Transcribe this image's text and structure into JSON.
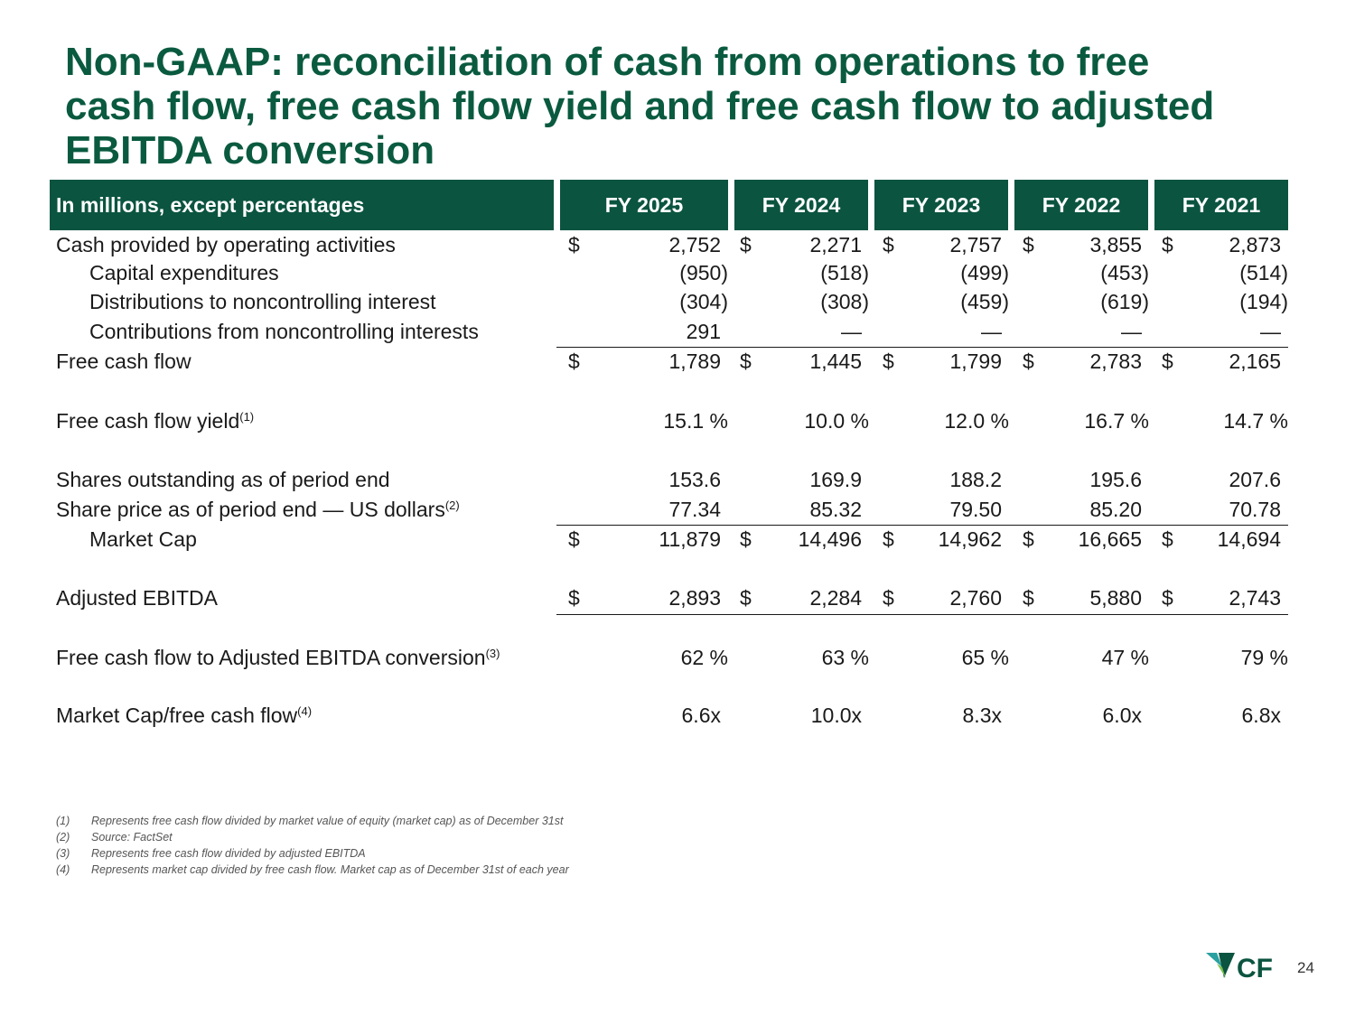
{
  "title_lines": [
    "Non-GAAP: reconciliation of cash from operations to free",
    "cash flow, free cash flow yield and free cash flow to adjusted",
    "EBITDA conversion"
  ],
  "table": {
    "header_label": "In millions, except percentages",
    "columns": [
      "FY 2025",
      "FY 2024",
      "FY 2023",
      "FY 2022",
      "FY 2021"
    ],
    "rows": [
      {
        "label": "Cash provided by operating activities",
        "indent": false,
        "dollar": true,
        "values": [
          "2,752",
          "2,271",
          "2,757",
          "3,855",
          "2,873"
        ]
      },
      {
        "label": "Capital expenditures",
        "indent": true,
        "dollar": false,
        "values": [
          "(950)",
          "(518)",
          "(499)",
          "(453)",
          "(514)"
        ]
      },
      {
        "label": "Distributions to noncontrolling interest",
        "indent": true,
        "dollar": false,
        "values": [
          "(304)",
          "(308)",
          "(459)",
          "(619)",
          "(194)"
        ]
      },
      {
        "label": "Contributions from noncontrolling interests",
        "indent": true,
        "dollar": false,
        "values": [
          "291",
          "—",
          "—",
          "—",
          "—"
        ]
      },
      {
        "label": "Free cash flow",
        "indent": false,
        "dollar": true,
        "values": [
          "1,789",
          "1,445",
          "1,799",
          "2,783",
          "2,165"
        ]
      },
      {
        "label": "Free cash flow yield",
        "sup": "(1)",
        "indent": false,
        "dollar": false,
        "values": [
          "15.1 %",
          "10.0 %",
          "12.0 %",
          "16.7 %",
          "14.7 %"
        ]
      },
      {
        "label": "Shares outstanding as of period end",
        "indent": false,
        "dollar": false,
        "values": [
          "153.6",
          "169.9",
          "188.2",
          "195.6",
          "207.6"
        ]
      },
      {
        "label": "Share price as of period end — US dollars",
        "sup": "(2)",
        "indent": false,
        "dollar": false,
        "values": [
          "77.34",
          "85.32",
          "79.50",
          "85.20",
          "70.78"
        ]
      },
      {
        "label": "Market Cap",
        "indent": true,
        "dollar": true,
        "values": [
          "11,879",
          "14,496",
          "14,962",
          "16,665",
          "14,694"
        ]
      },
      {
        "label": "Adjusted EBITDA",
        "indent": false,
        "dollar": true,
        "values": [
          "2,893",
          "2,284",
          "2,760",
          "5,880",
          "2,743"
        ]
      },
      {
        "label": "Free cash flow to Adjusted EBITDA conversion",
        "sup": "(3)",
        "indent": false,
        "dollar": false,
        "values": [
          "62 %",
          "63 %",
          "65 %",
          "47 %",
          "79 %"
        ]
      },
      {
        "label": "Market Cap/free cash flow",
        "sup": "(4)",
        "indent": false,
        "dollar": false,
        "values": [
          "6.6x",
          "10.0x",
          "8.3x",
          "6.0x",
          "6.8x"
        ]
      }
    ]
  },
  "currency_symbol": "$",
  "footnotes": [
    {
      "num": "(1)",
      "text": "Represents free cash flow divided by market value of equity (market cap) as of December 31st"
    },
    {
      "num": "(2)",
      "text": "Source: FactSet"
    },
    {
      "num": "(3)",
      "text": "Represents free cash flow divided by adjusted EBITDA"
    },
    {
      "num": "(4)",
      "text": "Represents market cap divided by free cash flow. Market cap as of December 31st of each year"
    }
  ],
  "logo_text": "CF",
  "page_number": "24",
  "colors": {
    "brand_green": "#0b5440",
    "title_green": "#0a5a40",
    "logo_teal": "#2aa0a0"
  }
}
